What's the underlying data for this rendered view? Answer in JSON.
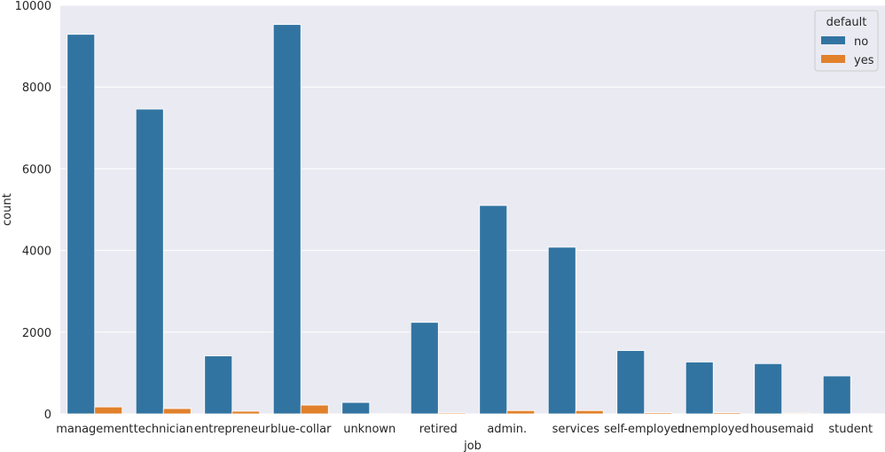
{
  "chart_data": {
    "type": "bar",
    "title": "",
    "xlabel": "job",
    "ylabel": "count",
    "ylim": [
      0,
      10000
    ],
    "yticks": [
      0,
      2000,
      4000,
      6000,
      8000,
      10000
    ],
    "categories": [
      "management",
      "technician",
      "entrepreneur",
      "blue-collar",
      "unknown",
      "retired",
      "admin.",
      "services",
      "self-employed",
      "unemployed",
      "housemaid",
      "student"
    ],
    "series": [
      {
        "name": "no",
        "color": "#3274a1",
        "values": [
          9290,
          7460,
          1420,
          9530,
          280,
          2240,
          5100,
          4080,
          1550,
          1270,
          1230,
          930
        ]
      },
      {
        "name": "yes",
        "color": "#e1812c",
        "values": [
          170,
          130,
          65,
          215,
          5,
          25,
          80,
          80,
          30,
          30,
          20,
          5
        ]
      }
    ],
    "legend": {
      "title": "default",
      "placement": "top-right"
    },
    "grid": true,
    "background": "#eaeaf2"
  }
}
